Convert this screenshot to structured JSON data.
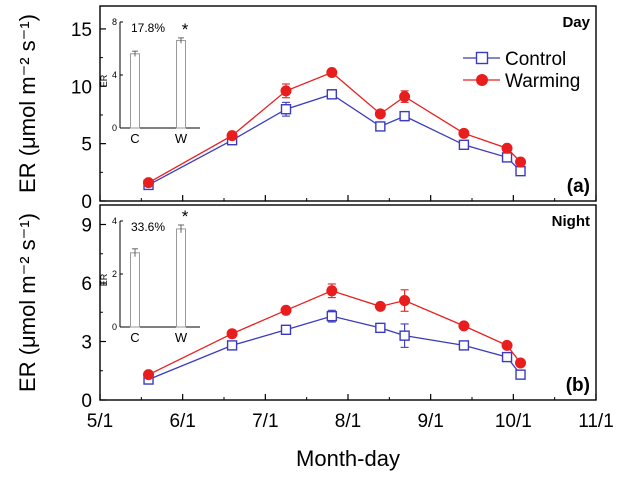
{
  "chart_data": {
    "type": "line",
    "xlabel": "Month-day",
    "x_ticks": [
      "5/1",
      "6/1",
      "7/1",
      "8/1",
      "9/1",
      "10/1",
      "11/1"
    ],
    "x_range": [
      "05-01",
      "11-01"
    ],
    "legend": {
      "placement": "top-right",
      "entries": [
        "Control",
        "Warming"
      ]
    },
    "colors": {
      "control": "#3b3bbf",
      "warming": "#e81e1e",
      "frame": "#000000",
      "inset_bar": "#9a9a9a"
    },
    "panels": [
      {
        "id": "a",
        "tag": "(a)",
        "label": "Day",
        "ylabel": "ER (μmol m⁻² s⁻¹)",
        "ylim": [
          0,
          17
        ],
        "yticks": [
          "0",
          "5",
          "10",
          "15"
        ],
        "x": [
          "05-19",
          "06-19",
          "07-09",
          "07-26",
          "08-13",
          "08-22",
          "09-13",
          "09-29",
          "10-04"
        ],
        "series": [
          {
            "name": "Control",
            "values": [
              1.4,
              5.3,
              8.0,
              9.3,
              6.5,
              7.4,
              4.9,
              3.8,
              2.6
            ],
            "errors": [
              0.15,
              0.2,
              0.6,
              0.4,
              0.3,
              0.4,
              0.3,
              0.3,
              0.3
            ]
          },
          {
            "name": "Warming",
            "values": [
              1.6,
              5.7,
              9.6,
              11.2,
              7.6,
              9.1,
              5.9,
              4.6,
              3.4
            ],
            "errors": [
              0.15,
              0.3,
              0.6,
              0.2,
              0.3,
              0.5,
              0.2,
              0.2,
              0.2
            ]
          }
        ],
        "inset": {
          "ylabel": "ER",
          "ylim": [
            0,
            8
          ],
          "yticks": [
            "0",
            "4",
            "8"
          ],
          "categories": [
            "C",
            "W"
          ],
          "values": [
            5.6,
            6.6
          ],
          "errors": [
            0.2,
            0.2
          ],
          "annotation": "17.8%",
          "significance": "*"
        }
      },
      {
        "id": "b",
        "tag": "(b)",
        "label": "Night",
        "ylabel": "ER (μmol m⁻² s⁻¹)",
        "ylim": [
          0,
          10
        ],
        "yticks": [
          "0",
          "3",
          "6",
          "9"
        ],
        "x": [
          "05-19",
          "06-19",
          "07-09",
          "07-26",
          "08-13",
          "08-22",
          "09-13",
          "09-29",
          "10-04"
        ],
        "series": [
          {
            "name": "Control",
            "values": [
              1.05,
              2.8,
              3.6,
              4.3,
              3.7,
              3.3,
              2.8,
              2.2,
              1.3
            ],
            "errors": [
              0.15,
              0.2,
              0.2,
              0.3,
              0.2,
              0.6,
              0.2,
              0.2,
              0.2
            ]
          },
          {
            "name": "Warming",
            "values": [
              1.3,
              3.4,
              4.6,
              5.6,
              4.8,
              5.1,
              3.8,
              2.8,
              1.9
            ],
            "errors": [
              0.1,
              0.15,
              0.15,
              0.35,
              0.15,
              0.55,
              0.15,
              0.15,
              0.15
            ]
          }
        ],
        "inset": {
          "ylabel": "ER",
          "ylim": [
            0,
            4
          ],
          "yticks": [
            "0",
            "2",
            "4"
          ],
          "categories": [
            "C",
            "W"
          ],
          "values": [
            2.8,
            3.7
          ],
          "errors": [
            0.15,
            0.15
          ],
          "annotation": "33.6%",
          "significance": "*"
        }
      }
    ]
  }
}
